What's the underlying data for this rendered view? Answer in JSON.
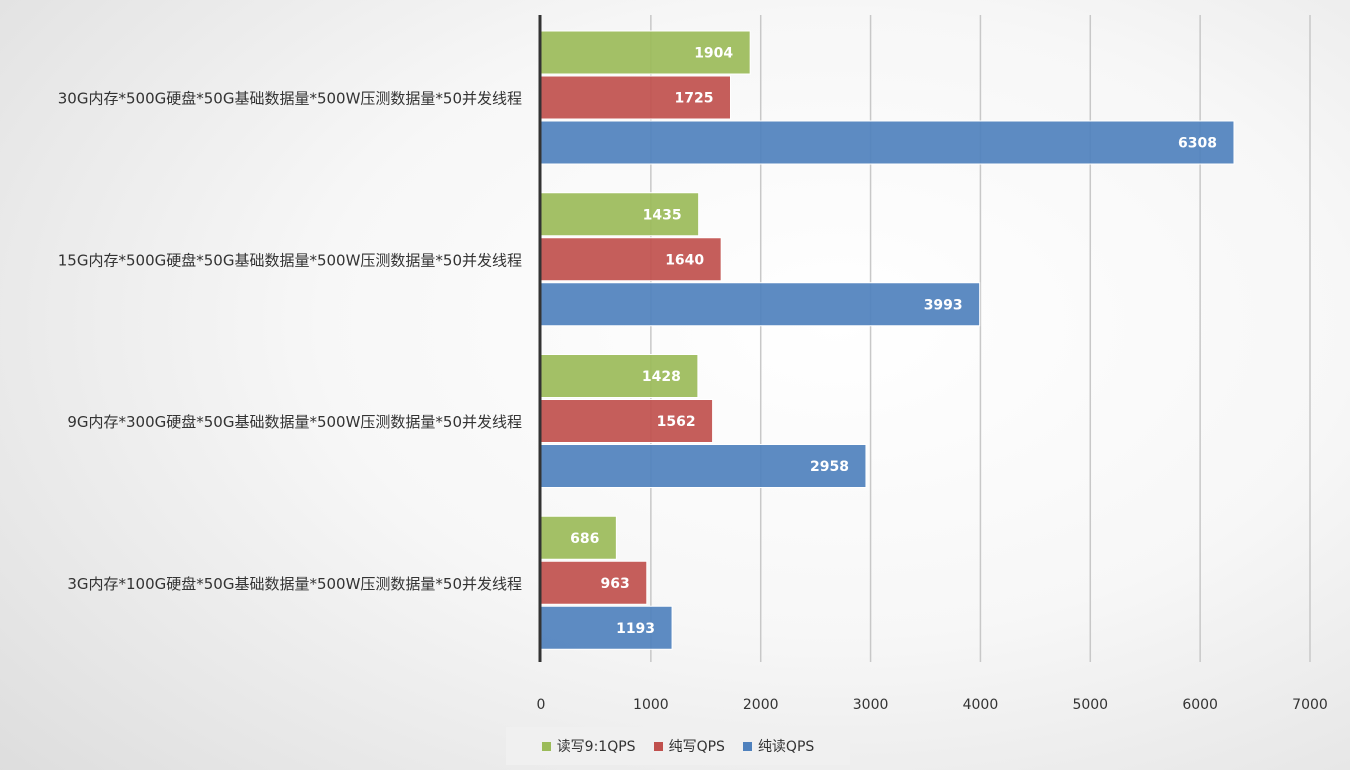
{
  "chart_data": {
    "type": "bar",
    "orientation": "horizontal",
    "title": "",
    "xlabel": "",
    "ylabel": "",
    "xlim": [
      0,
      7000
    ],
    "x_ticks": [
      0,
      1000,
      2000,
      3000,
      4000,
      5000,
      6000,
      7000
    ],
    "grid": "vertical",
    "legend_position": "bottom",
    "categories": [
      "30G内存*500G硬盘*50G基础数据量*500W压测数据量*50并发线程",
      "15G内存*500G硬盘*50G基础数据量*500W压测数据量*50并发线程",
      "9G内存*300G硬盘*50G基础数据量*500W压测数据量*50并发线程",
      "3G内存*100G硬盘*50G基础数据量*500W压测数据量*50并发线程"
    ],
    "series": [
      {
        "name": "读写9:1QPS",
        "color": "#9bbb59",
        "values": [
          1904,
          1435,
          1428,
          686
        ]
      },
      {
        "name": "纯写QPS",
        "color": "#c0504d",
        "values": [
          1725,
          1640,
          1562,
          963
        ]
      },
      {
        "name": "纯读QPS",
        "color": "#4f81bd",
        "values": [
          6308,
          3993,
          2958,
          1193
        ]
      }
    ]
  }
}
